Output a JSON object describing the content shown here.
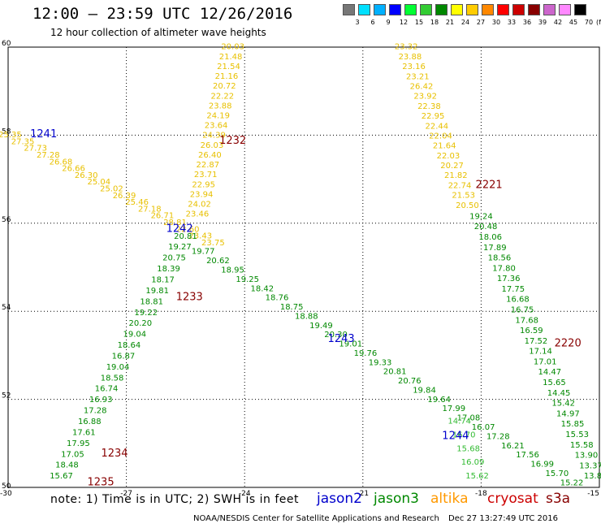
{
  "header": {
    "title": "12:00 – 23:59 UTC 12/26/2016",
    "subtitle": "12 hour collection of altimeter wave heights"
  },
  "color_scale": {
    "unit": "(ft)",
    "swatches": [
      {
        "label": "3",
        "color": "#777777"
      },
      {
        "label": "6",
        "color": "#00e0ff"
      },
      {
        "label": "9",
        "color": "#00b0ff"
      },
      {
        "label": "12",
        "color": "#0000ff"
      },
      {
        "label": "15",
        "color": "#00ff33"
      },
      {
        "label": "18",
        "color": "#33cc33"
      },
      {
        "label": "21",
        "color": "#008800"
      },
      {
        "label": "24",
        "color": "#ffff00"
      },
      {
        "label": "27",
        "color": "#ffcc00"
      },
      {
        "label": "30",
        "color": "#ff8800"
      },
      {
        "label": "33",
        "color": "#ff0000"
      },
      {
        "label": "36",
        "color": "#cc0000"
      },
      {
        "label": "39",
        "color": "#880000"
      },
      {
        "label": "42",
        "color": "#cc66cc"
      },
      {
        "label": "45",
        "color": "#ff88ff"
      },
      {
        "label": "70",
        "color": "#000000"
      }
    ]
  },
  "axes": {
    "lat_labels": [
      "60",
      "58",
      "56",
      "54",
      "52",
      "50"
    ],
    "lon_labels": [
      "-30",
      "-27",
      "-24",
      "-21",
      "-18",
      "-15"
    ]
  },
  "chart_data": {
    "type": "scatter",
    "lon_range": [
      -30,
      -15
    ],
    "lat_range": [
      50,
      60
    ],
    "time_labels": [
      {
        "text": "1241",
        "lon": -29.1,
        "lat": 57.95,
        "sat": "jason2"
      },
      {
        "text": "1232",
        "lon": -24.3,
        "lat": 57.8,
        "sat": "cryosat"
      },
      {
        "text": "2221",
        "lon": -17.8,
        "lat": 56.8,
        "sat": "cryosat"
      },
      {
        "text": "1242",
        "lon": -25.65,
        "lat": 55.8,
        "sat": "jason2"
      },
      {
        "text": "1233",
        "lon": -25.4,
        "lat": 54.25,
        "sat": "cryosat"
      },
      {
        "text": "1243",
        "lon": -21.55,
        "lat": 53.3,
        "sat": "jason2"
      },
      {
        "text": "2220",
        "lon": -15.8,
        "lat": 53.2,
        "sat": "cryosat"
      },
      {
        "text": "1244",
        "lon": -18.65,
        "lat": 51.1,
        "sat": "jason2"
      },
      {
        "text": "1234",
        "lon": -27.3,
        "lat": 50.7,
        "sat": "cryosat"
      },
      {
        "text": "1235",
        "lon": -27.65,
        "lat": 50.05,
        "sat": "cryosat"
      }
    ],
    "tracks": [
      {
        "name": "track-1",
        "start": [
          -29.95,
          57.95
        ],
        "end": [
          -24.8,
          55.5
        ],
        "color": "#e8c000",
        "values": [
          "25.35",
          "27.35",
          "27.73",
          "27.28",
          "26.68",
          "26.66",
          "26.30",
          "25.04",
          "25.02",
          "26.39",
          "25.46",
          "27.18",
          "26.71",
          "28.81",
          "22.60",
          "23.43",
          "23.75"
        ]
      },
      {
        "name": "track-2",
        "start": [
          -25.05,
          55.3
        ],
        "end": [
          -15.7,
          50.05
        ],
        "color": "#008800",
        "values": [
          "19.77",
          "20.62",
          "18.95",
          "19.25",
          "18.42",
          "18.76",
          "18.75",
          "18.88",
          "19.49",
          "20.30",
          "19.01",
          "19.76",
          "19.33",
          "20.81",
          "20.76",
          "19.84",
          "19.64",
          "17.99",
          "17.08",
          "16.07",
          "17.28",
          "16.21",
          "17.56",
          "16.99",
          "15.70",
          "15.22"
        ]
      },
      {
        "name": "track-3",
        "start": [
          -24.3,
          59.95
        ],
        "end": [
          -25.2,
          56.15
        ],
        "color": "#e8c000",
        "values": [
          "20.03",
          "21.48",
          "21.54",
          "21.16",
          "20.72",
          "22.22",
          "23.88",
          "24.19",
          "23.64",
          "24.39",
          "26.03",
          "26.40",
          "22.87",
          "23.71",
          "22.95",
          "23.94",
          "24.02",
          "23.46"
        ]
      },
      {
        "name": "track-4",
        "start": [
          -25.5,
          55.65
        ],
        "end": [
          -28.65,
          50.2
        ],
        "color": "#008800",
        "values": [
          "20.81",
          "19.27",
          "20.75",
          "18.39",
          "18.17",
          "19.81",
          "18.81",
          "19.22",
          "20.20",
          "19.04",
          "18.64",
          "16.87",
          "19.04",
          "18.58",
          "16.74",
          "16.93",
          "17.28",
          "16.88",
          "17.61",
          "17.95",
          "17.05",
          "18.48",
          "15.67"
        ]
      },
      {
        "name": "track-5",
        "start": [
          -19.9,
          59.95
        ],
        "end": [
          -18.35,
          56.35
        ],
        "color": "#e8c000",
        "values": [
          "23.32",
          "23.88",
          "23.16",
          "23.21",
          "26.42",
          "23.92",
          "22.38",
          "22.95",
          "22.44",
          "22.04",
          "21.64",
          "22.03",
          "20.27",
          "21.82",
          "22.74",
          "21.53",
          "20.50"
        ]
      },
      {
        "name": "track-6",
        "start": [
          -18.0,
          56.1
        ],
        "end": [
          -15.1,
          50.2
        ],
        "color": "#008800",
        "values": [
          "19.24",
          "20.48",
          "18.06",
          "17.89",
          "18.56",
          "17.80",
          "17.36",
          "17.75",
          "16.68",
          "16.75",
          "17.68",
          "16.59",
          "17.52",
          "17.14",
          "17.01",
          "14.47",
          "15.65",
          "14.45",
          "15.42",
          "14.97",
          "15.85",
          "15.53",
          "15.58",
          "13.90",
          "13.37",
          "13.81"
        ]
      },
      {
        "name": "track-7",
        "start": [
          -18.55,
          51.45
        ],
        "end": [
          -18.1,
          50.2
        ],
        "color": "#33bb33",
        "values": [
          "14.74",
          "16.70",
          "15.68",
          "16.09",
          "15.62"
        ]
      }
    ]
  },
  "footer": {
    "note": "note: 1) Time is in UTC; 2) SWH is in feet",
    "legend": [
      {
        "label": "jason2",
        "color": "#0000cc"
      },
      {
        "label": "jason3",
        "color": "#008800"
      },
      {
        "label": "altika",
        "color": "#ff9900"
      },
      {
        "label": "cryosat",
        "color": "#cc0000"
      },
      {
        "label": "s3a",
        "color": "#880000"
      }
    ],
    "credit": "NOAA/NESDIS Center for Satellite Applications and Research",
    "timestamp": "Dec 27 13:27:49 UTC 2016"
  }
}
